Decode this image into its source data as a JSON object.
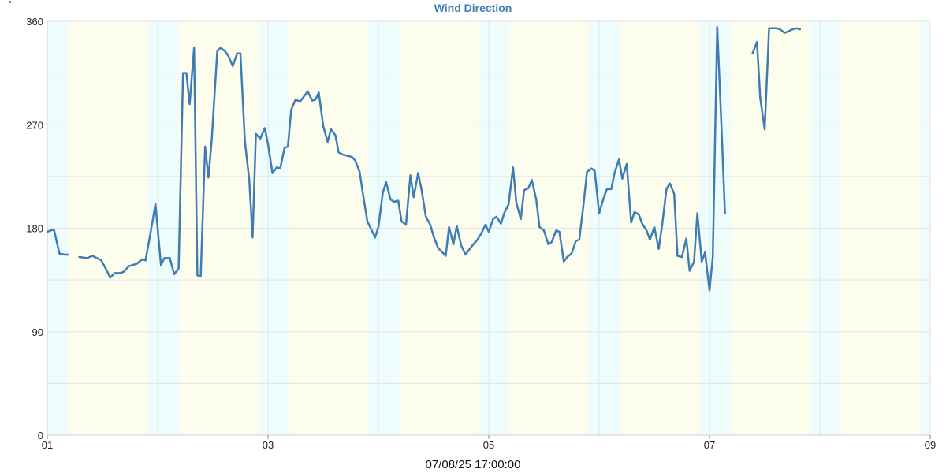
{
  "chart_data": {
    "type": "line",
    "title": "Wind Direction",
    "y_unit": "°",
    "x_caption": "07/08/25 17:00:00",
    "ylim": [
      0,
      360
    ],
    "y_ticks": [
      0,
      90,
      180,
      270,
      360
    ],
    "xlim": [
      1,
      9
    ],
    "x_ticks": [
      {
        "value": 1,
        "label": "01"
      },
      {
        "value": 3,
        "label": "03"
      },
      {
        "value": 5,
        "label": "05"
      },
      {
        "value": 7,
        "label": "07"
      },
      {
        "value": 9,
        "label": "09"
      }
    ],
    "grid": true,
    "colors": {
      "line": "#3f7cb3",
      "title": "#3f7cb3",
      "day_band": "#fdfdee",
      "twilight_band": "#eefcfc",
      "grid": "#e3e3e3"
    },
    "bands": [
      {
        "from": 1.0,
        "to": 1.19,
        "kind": "twilight"
      },
      {
        "from": 1.19,
        "to": 1.91,
        "kind": "day"
      },
      {
        "from": 1.91,
        "to": 2.19,
        "kind": "twilight"
      },
      {
        "from": 2.19,
        "to": 2.91,
        "kind": "day"
      },
      {
        "from": 2.91,
        "to": 3.19,
        "kind": "twilight"
      },
      {
        "from": 3.19,
        "to": 3.91,
        "kind": "day"
      },
      {
        "from": 3.91,
        "to": 4.19,
        "kind": "twilight"
      },
      {
        "from": 4.19,
        "to": 4.91,
        "kind": "day"
      },
      {
        "from": 4.91,
        "to": 5.19,
        "kind": "twilight"
      },
      {
        "from": 5.19,
        "to": 5.91,
        "kind": "day"
      },
      {
        "from": 5.91,
        "to": 6.19,
        "kind": "twilight"
      },
      {
        "from": 6.19,
        "to": 6.91,
        "kind": "day"
      },
      {
        "from": 6.91,
        "to": 7.19,
        "kind": "twilight"
      },
      {
        "from": 7.19,
        "to": 7.91,
        "kind": "day"
      },
      {
        "from": 7.91,
        "to": 8.19,
        "kind": "twilight"
      },
      {
        "from": 8.19,
        "to": 8.91,
        "kind": "day"
      },
      {
        "from": 8.91,
        "to": 9.0,
        "kind": "twilight"
      }
    ],
    "series": [
      {
        "segments": [
          [
            [
              1.0,
              177
            ],
            [
              1.06,
              179
            ],
            [
              1.11,
              158
            ],
            [
              1.16,
              157
            ],
            [
              1.19,
              157
            ]
          ],
          [
            [
              1.29,
              155
            ],
            [
              1.36,
              154
            ],
            [
              1.41,
              156
            ],
            [
              1.49,
              152
            ],
            [
              1.54,
              143
            ],
            [
              1.57,
              137
            ],
            [
              1.61,
              141
            ],
            [
              1.66,
              141
            ],
            [
              1.69,
              142
            ],
            [
              1.74,
              147
            ],
            [
              1.81,
              149
            ],
            [
              1.86,
              153
            ],
            [
              1.89,
              152
            ],
            [
              1.93,
              173
            ],
            [
              1.98,
              201
            ],
            [
              2.03,
              148
            ],
            [
              2.06,
              154
            ],
            [
              2.11,
              154
            ],
            [
              2.15,
              140
            ],
            [
              2.19,
              145
            ],
            [
              2.23,
              315
            ],
            [
              2.26,
              315
            ],
            [
              2.29,
              288
            ],
            [
              2.33,
              337
            ],
            [
              2.36,
              139
            ],
            [
              2.39,
              138
            ],
            [
              2.43,
              251
            ],
            [
              2.46,
              224
            ],
            [
              2.49,
              257
            ],
            [
              2.54,
              334
            ],
            [
              2.57,
              337
            ],
            [
              2.61,
              334
            ],
            [
              2.64,
              330
            ],
            [
              2.68,
              321
            ],
            [
              2.72,
              332
            ],
            [
              2.75,
              332
            ],
            [
              2.79,
              256
            ],
            [
              2.83,
              222
            ],
            [
              2.86,
              172
            ],
            [
              2.89,
              262
            ],
            [
              2.93,
              258
            ],
            [
              2.97,
              267
            ],
            [
              3.0,
              253
            ],
            [
              3.04,
              228
            ],
            [
              3.08,
              233
            ],
            [
              3.11,
              232
            ],
            [
              3.15,
              250
            ],
            [
              3.18,
              251
            ],
            [
              3.21,
              283
            ],
            [
              3.25,
              292
            ],
            [
              3.29,
              290
            ],
            [
              3.32,
              294
            ],
            [
              3.36,
              299
            ],
            [
              3.4,
              291
            ],
            [
              3.43,
              292
            ],
            [
              3.46,
              298
            ],
            [
              3.5,
              269
            ],
            [
              3.54,
              255
            ],
            [
              3.57,
              266
            ],
            [
              3.61,
              261
            ],
            [
              3.64,
              246
            ],
            [
              3.68,
              244
            ],
            [
              3.72,
              243
            ],
            [
              3.76,
              242
            ],
            [
              3.79,
              239
            ],
            [
              3.83,
              229
            ],
            [
              3.86,
              210
            ],
            [
              3.9,
              186
            ],
            [
              3.94,
              178
            ],
            [
              3.97,
              172
            ],
            [
              4.0,
              181
            ],
            [
              4.04,
              211
            ],
            [
              4.07,
              220
            ],
            [
              4.11,
              205
            ],
            [
              4.14,
              203
            ],
            [
              4.18,
              204
            ],
            [
              4.21,
              186
            ],
            [
              4.25,
              183
            ],
            [
              4.29,
              226
            ],
            [
              4.32,
              207
            ],
            [
              4.36,
              228
            ],
            [
              4.39,
              214
            ],
            [
              4.43,
              190
            ],
            [
              4.47,
              183
            ],
            [
              4.5,
              173
            ],
            [
              4.54,
              163
            ],
            [
              4.57,
              160
            ],
            [
              4.61,
              156
            ],
            [
              4.64,
              181
            ],
            [
              4.68,
              166
            ],
            [
              4.71,
              182
            ],
            [
              4.75,
              165
            ],
            [
              4.79,
              157
            ],
            [
              4.82,
              161
            ],
            [
              4.86,
              166
            ],
            [
              4.89,
              169
            ],
            [
              4.93,
              175
            ],
            [
              4.97,
              183
            ],
            [
              5.0,
              177
            ],
            [
              5.04,
              188
            ],
            [
              5.07,
              190
            ],
            [
              5.11,
              184
            ],
            [
              5.14,
              193
            ],
            [
              5.18,
              201
            ],
            [
              5.22,
              233
            ],
            [
              5.25,
              202
            ],
            [
              5.29,
              188
            ],
            [
              5.32,
              213
            ],
            [
              5.36,
              215
            ],
            [
              5.39,
              222
            ],
            [
              5.43,
              205
            ],
            [
              5.46,
              181
            ],
            [
              5.5,
              178
            ],
            [
              5.54,
              166
            ],
            [
              5.57,
              168
            ],
            [
              5.61,
              178
            ],
            [
              5.64,
              177
            ],
            [
              5.68,
              151
            ],
            [
              5.71,
              155
            ],
            [
              5.75,
              158
            ],
            [
              5.79,
              169
            ],
            [
              5.82,
              170
            ],
            [
              5.86,
              202
            ],
            [
              5.89,
              229
            ],
            [
              5.93,
              232
            ],
            [
              5.96,
              230
            ],
            [
              6.0,
              193
            ],
            [
              6.04,
              206
            ],
            [
              6.07,
              214
            ],
            [
              6.11,
              214
            ],
            [
              6.14,
              228
            ],
            [
              6.18,
              240
            ],
            [
              6.21,
              223
            ],
            [
              6.25,
              236
            ],
            [
              6.29,
              185
            ],
            [
              6.32,
              194
            ],
            [
              6.36,
              192
            ],
            [
              6.39,
              184
            ],
            [
              6.43,
              178
            ],
            [
              6.46,
              170
            ],
            [
              6.5,
              181
            ],
            [
              6.54,
              162
            ],
            [
              6.57,
              182
            ],
            [
              6.61,
              214
            ],
            [
              6.64,
              219
            ],
            [
              6.68,
              210
            ],
            [
              6.71,
              156
            ],
            [
              6.75,
              155
            ],
            [
              6.79,
              171
            ],
            [
              6.82,
              143
            ],
            [
              6.86,
              151
            ],
            [
              6.89,
              193
            ],
            [
              6.93,
              151
            ],
            [
              6.96,
              159
            ],
            [
              7.0,
              126
            ],
            [
              7.03,
              155
            ],
            [
              7.07,
              355
            ],
            [
              7.11,
              265
            ],
            [
              7.14,
              193
            ]
          ],
          [
            [
              7.39,
              332
            ],
            [
              7.43,
              342
            ],
            [
              7.46,
              293
            ],
            [
              7.5,
              266
            ],
            [
              7.54,
              354
            ],
            [
              7.57,
              354
            ],
            [
              7.61,
              354
            ],
            [
              7.64,
              353
            ],
            [
              7.68,
              350
            ],
            [
              7.71,
              351
            ],
            [
              7.75,
              353
            ],
            [
              7.79,
              354
            ],
            [
              7.82,
              353
            ]
          ]
        ]
      }
    ]
  }
}
